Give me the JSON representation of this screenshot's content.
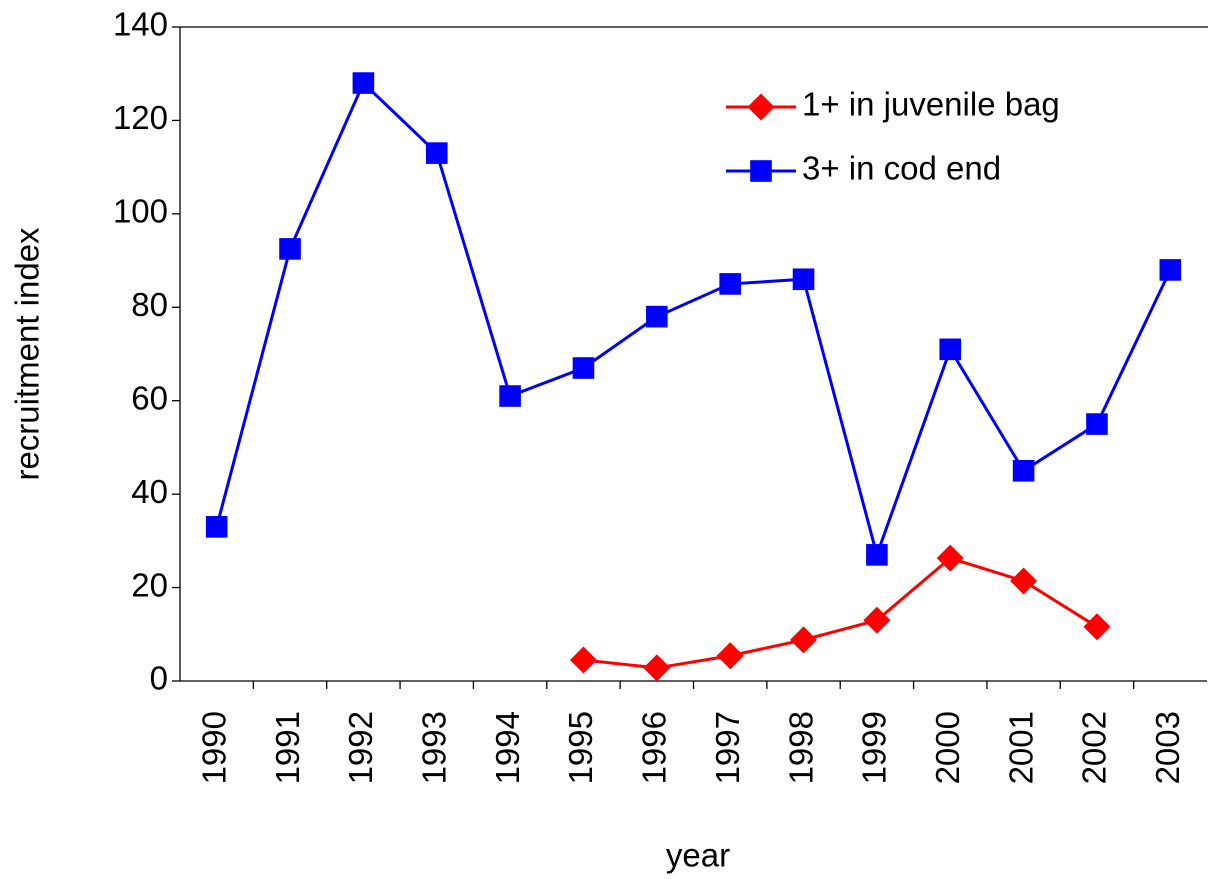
{
  "chart_data": {
    "type": "line",
    "x_label": "year",
    "y_label": "recruitment index",
    "categories": [
      "1990",
      "1991",
      "1992",
      "1993",
      "1994",
      "1995",
      "1996",
      "1997",
      "1998",
      "1999",
      "2000",
      "2001",
      "2002",
      "2003"
    ],
    "series": [
      {
        "name": "1+ in juvenile bag",
        "color": "#ff0000",
        "marker": "diamond",
        "values": [
          null,
          null,
          null,
          null,
          null,
          4.5,
          2.8,
          5.4,
          8.8,
          13,
          26.3,
          21.4,
          11.6,
          null
        ]
      },
      {
        "name": "3+ in cod end",
        "color": "#0000ff",
        "marker": "square",
        "values": [
          33,
          92.5,
          128,
          113,
          61,
          67,
          78,
          85,
          86,
          27,
          71,
          45,
          55,
          88
        ]
      }
    ],
    "ylim": [
      0,
      140
    ],
    "yticks": [
      0,
      20,
      40,
      60,
      80,
      100,
      120,
      140
    ],
    "legend": "top-right"
  }
}
